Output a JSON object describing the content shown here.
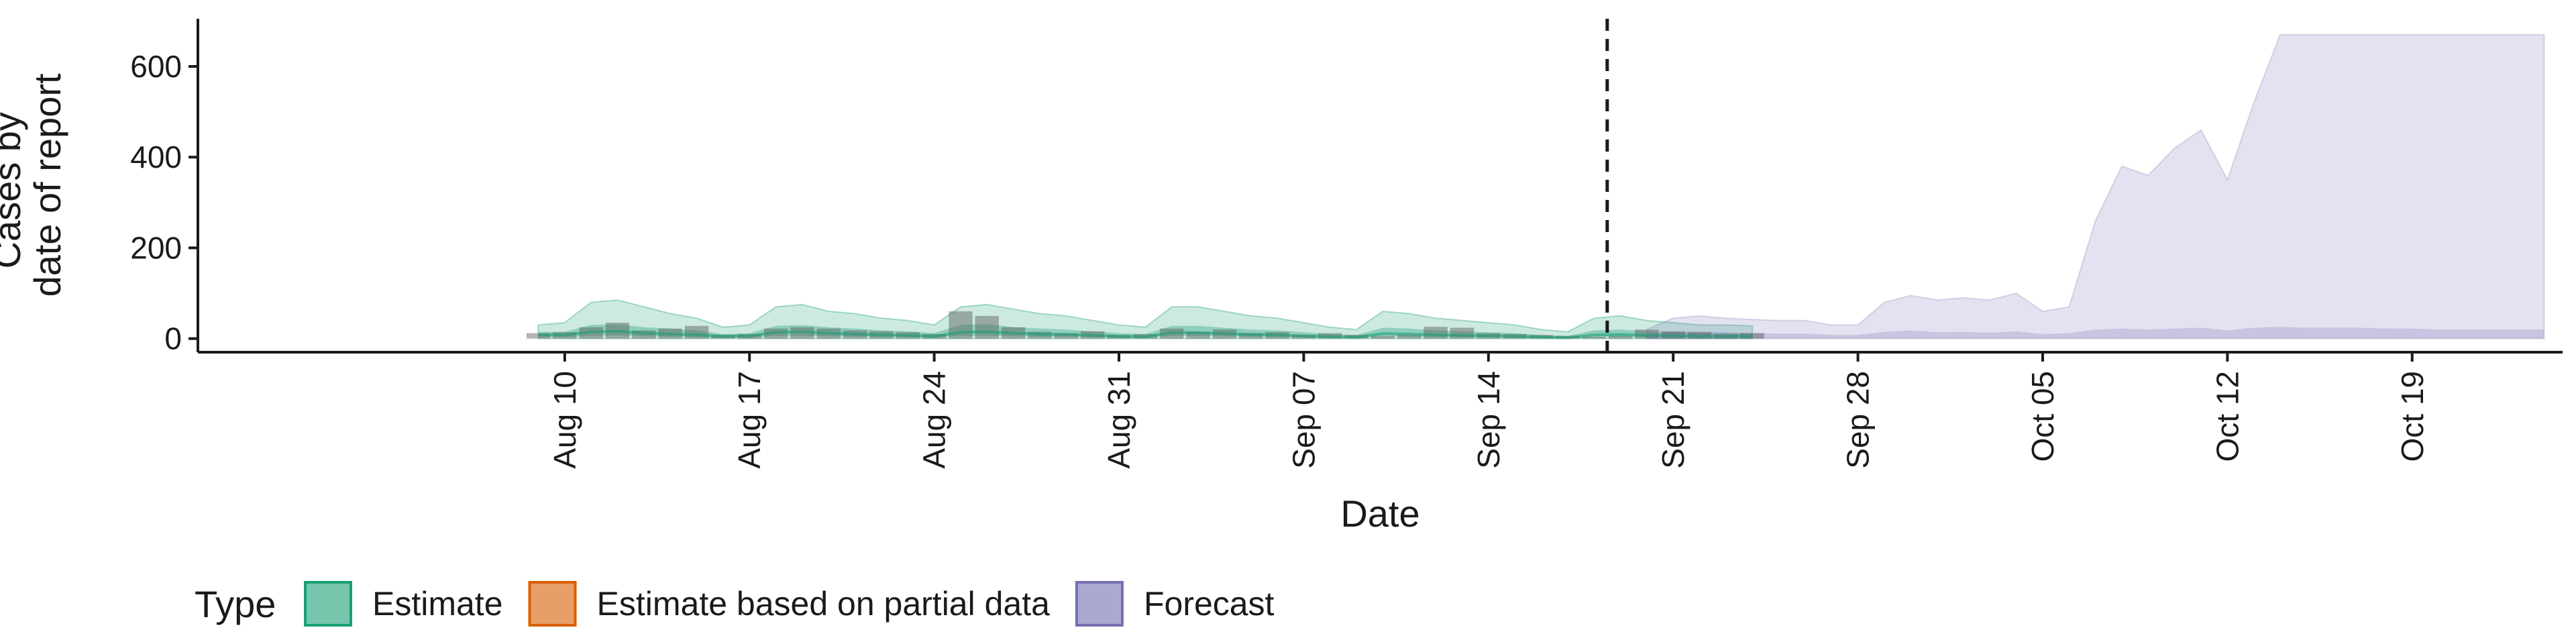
{
  "chart_data": {
    "type": "area",
    "title": "",
    "xlabel": "Date",
    "ylabel_lines": [
      "Cases by",
      "date of report"
    ],
    "ylim": [
      -30,
      705
    ],
    "yticks": [
      0,
      200,
      400,
      600
    ],
    "x_tick_labels": [
      "Aug 10",
      "Aug 17",
      "Aug 24",
      "Aug 31",
      "Sep 07",
      "Sep 14",
      "Sep 21",
      "Sep 28",
      "Oct 05",
      "Oct 12",
      "Oct 19"
    ],
    "x_tick_days": [
      9,
      16,
      23,
      30,
      37,
      44,
      51,
      58,
      65,
      72,
      79
    ],
    "x_range_days": [
      -4.9,
      84.7
    ],
    "day_zero": "Aug 01",
    "forecast_start_day": 48.5,
    "colors": {
      "estimate": "#1b9e77",
      "partial": "#d95f02",
      "forecast": "#7570b3",
      "observed": "#595959"
    },
    "observed_bars": {
      "start_day": 8,
      "values": [
        12,
        14,
        25,
        35,
        18,
        22,
        28,
        8,
        10,
        22,
        25,
        22,
        18,
        16,
        14,
        10,
        60,
        50,
        25,
        15,
        12,
        16,
        8,
        10,
        22,
        15,
        20,
        12,
        14,
        8,
        12,
        8,
        6,
        8,
        26,
        24,
        12,
        10,
        8,
        6,
        4,
        6,
        20,
        16,
        14,
        10,
        12
      ]
    },
    "estimate_band": {
      "start_day": 8,
      "outer_upper": [
        30,
        35,
        80,
        85,
        70,
        55,
        45,
        25,
        30,
        70,
        75,
        60,
        55,
        45,
        40,
        30,
        70,
        75,
        65,
        55,
        50,
        40,
        30,
        25,
        70,
        70,
        60,
        50,
        45,
        35,
        25,
        20,
        60,
        55,
        45,
        40,
        35,
        30,
        20,
        15,
        45,
        50,
        40,
        35,
        30,
        30,
        28
      ],
      "outer_lower": [
        0,
        0,
        0,
        0,
        0,
        0,
        0,
        0,
        0,
        0,
        0,
        0,
        0,
        0,
        0,
        0,
        0,
        0,
        0,
        0,
        0,
        0,
        0,
        0,
        0,
        0,
        0,
        0,
        0,
        0,
        0,
        0,
        0,
        0,
        0,
        0,
        0,
        0,
        0,
        0,
        0,
        0,
        0,
        0,
        0,
        0,
        0
      ],
      "inner_upper": [
        15,
        15,
        30,
        32,
        25,
        22,
        18,
        10,
        12,
        28,
        30,
        25,
        22,
        18,
        16,
        12,
        30,
        32,
        25,
        22,
        20,
        16,
        12,
        10,
        28,
        28,
        24,
        20,
        18,
        14,
        10,
        8,
        24,
        22,
        18,
        16,
        14,
        12,
        8,
        6,
        18,
        20,
        16,
        14,
        12,
        12,
        11
      ],
      "inner_lower": [
        3,
        3,
        6,
        7,
        5,
        4,
        3,
        2,
        2,
        6,
        6,
        5,
        4,
        3,
        3,
        2,
        6,
        6,
        5,
        4,
        4,
        3,
        2,
        2,
        6,
        6,
        5,
        4,
        3,
        3,
        2,
        2,
        5,
        4,
        3,
        3,
        3,
        2,
        2,
        1,
        3,
        4,
        3,
        3,
        2,
        2,
        2
      ],
      "median": [
        8,
        8,
        15,
        16,
        12,
        10,
        8,
        5,
        6,
        14,
        15,
        12,
        10,
        8,
        7,
        5,
        14,
        15,
        12,
        10,
        9,
        7,
        5,
        4,
        13,
        13,
        11,
        9,
        8,
        6,
        4,
        3,
        11,
        10,
        8,
        7,
        6,
        5,
        3,
        2,
        8,
        9,
        7,
        6,
        5,
        5,
        5
      ]
    },
    "forecast_band": {
      "start_day": 50,
      "upper": [
        20,
        45,
        50,
        45,
        42,
        40,
        40,
        30,
        30,
        80,
        95,
        85,
        90,
        85,
        100,
        60,
        70,
        260,
        380,
        360,
        420,
        460,
        350,
        520,
        670,
        670,
        670,
        670,
        670,
        670,
        670,
        670,
        670,
        670,
        670
      ],
      "lower": [
        0,
        0,
        0,
        0,
        0,
        0,
        0,
        0,
        0,
        0,
        0,
        0,
        0,
        0,
        0,
        0,
        0,
        0,
        0,
        0,
        0,
        0,
        0,
        0,
        0,
        0,
        0,
        0,
        0,
        0,
        0,
        0,
        0,
        0,
        0
      ],
      "inner_upper": [
        8,
        15,
        16,
        14,
        12,
        11,
        11,
        8,
        8,
        15,
        18,
        14,
        15,
        13,
        16,
        10,
        12,
        20,
        22,
        20,
        22,
        24,
        18,
        24,
        26,
        24,
        24,
        24,
        22,
        22,
        20,
        20,
        20,
        20,
        20
      ]
    },
    "legend": {
      "title": "Type",
      "position": "bottom",
      "entries": [
        {
          "label": "Estimate",
          "key": "estimate"
        },
        {
          "label": "Estimate based on partial data",
          "key": "partial"
        },
        {
          "label": "Forecast",
          "key": "forecast"
        }
      ]
    }
  }
}
